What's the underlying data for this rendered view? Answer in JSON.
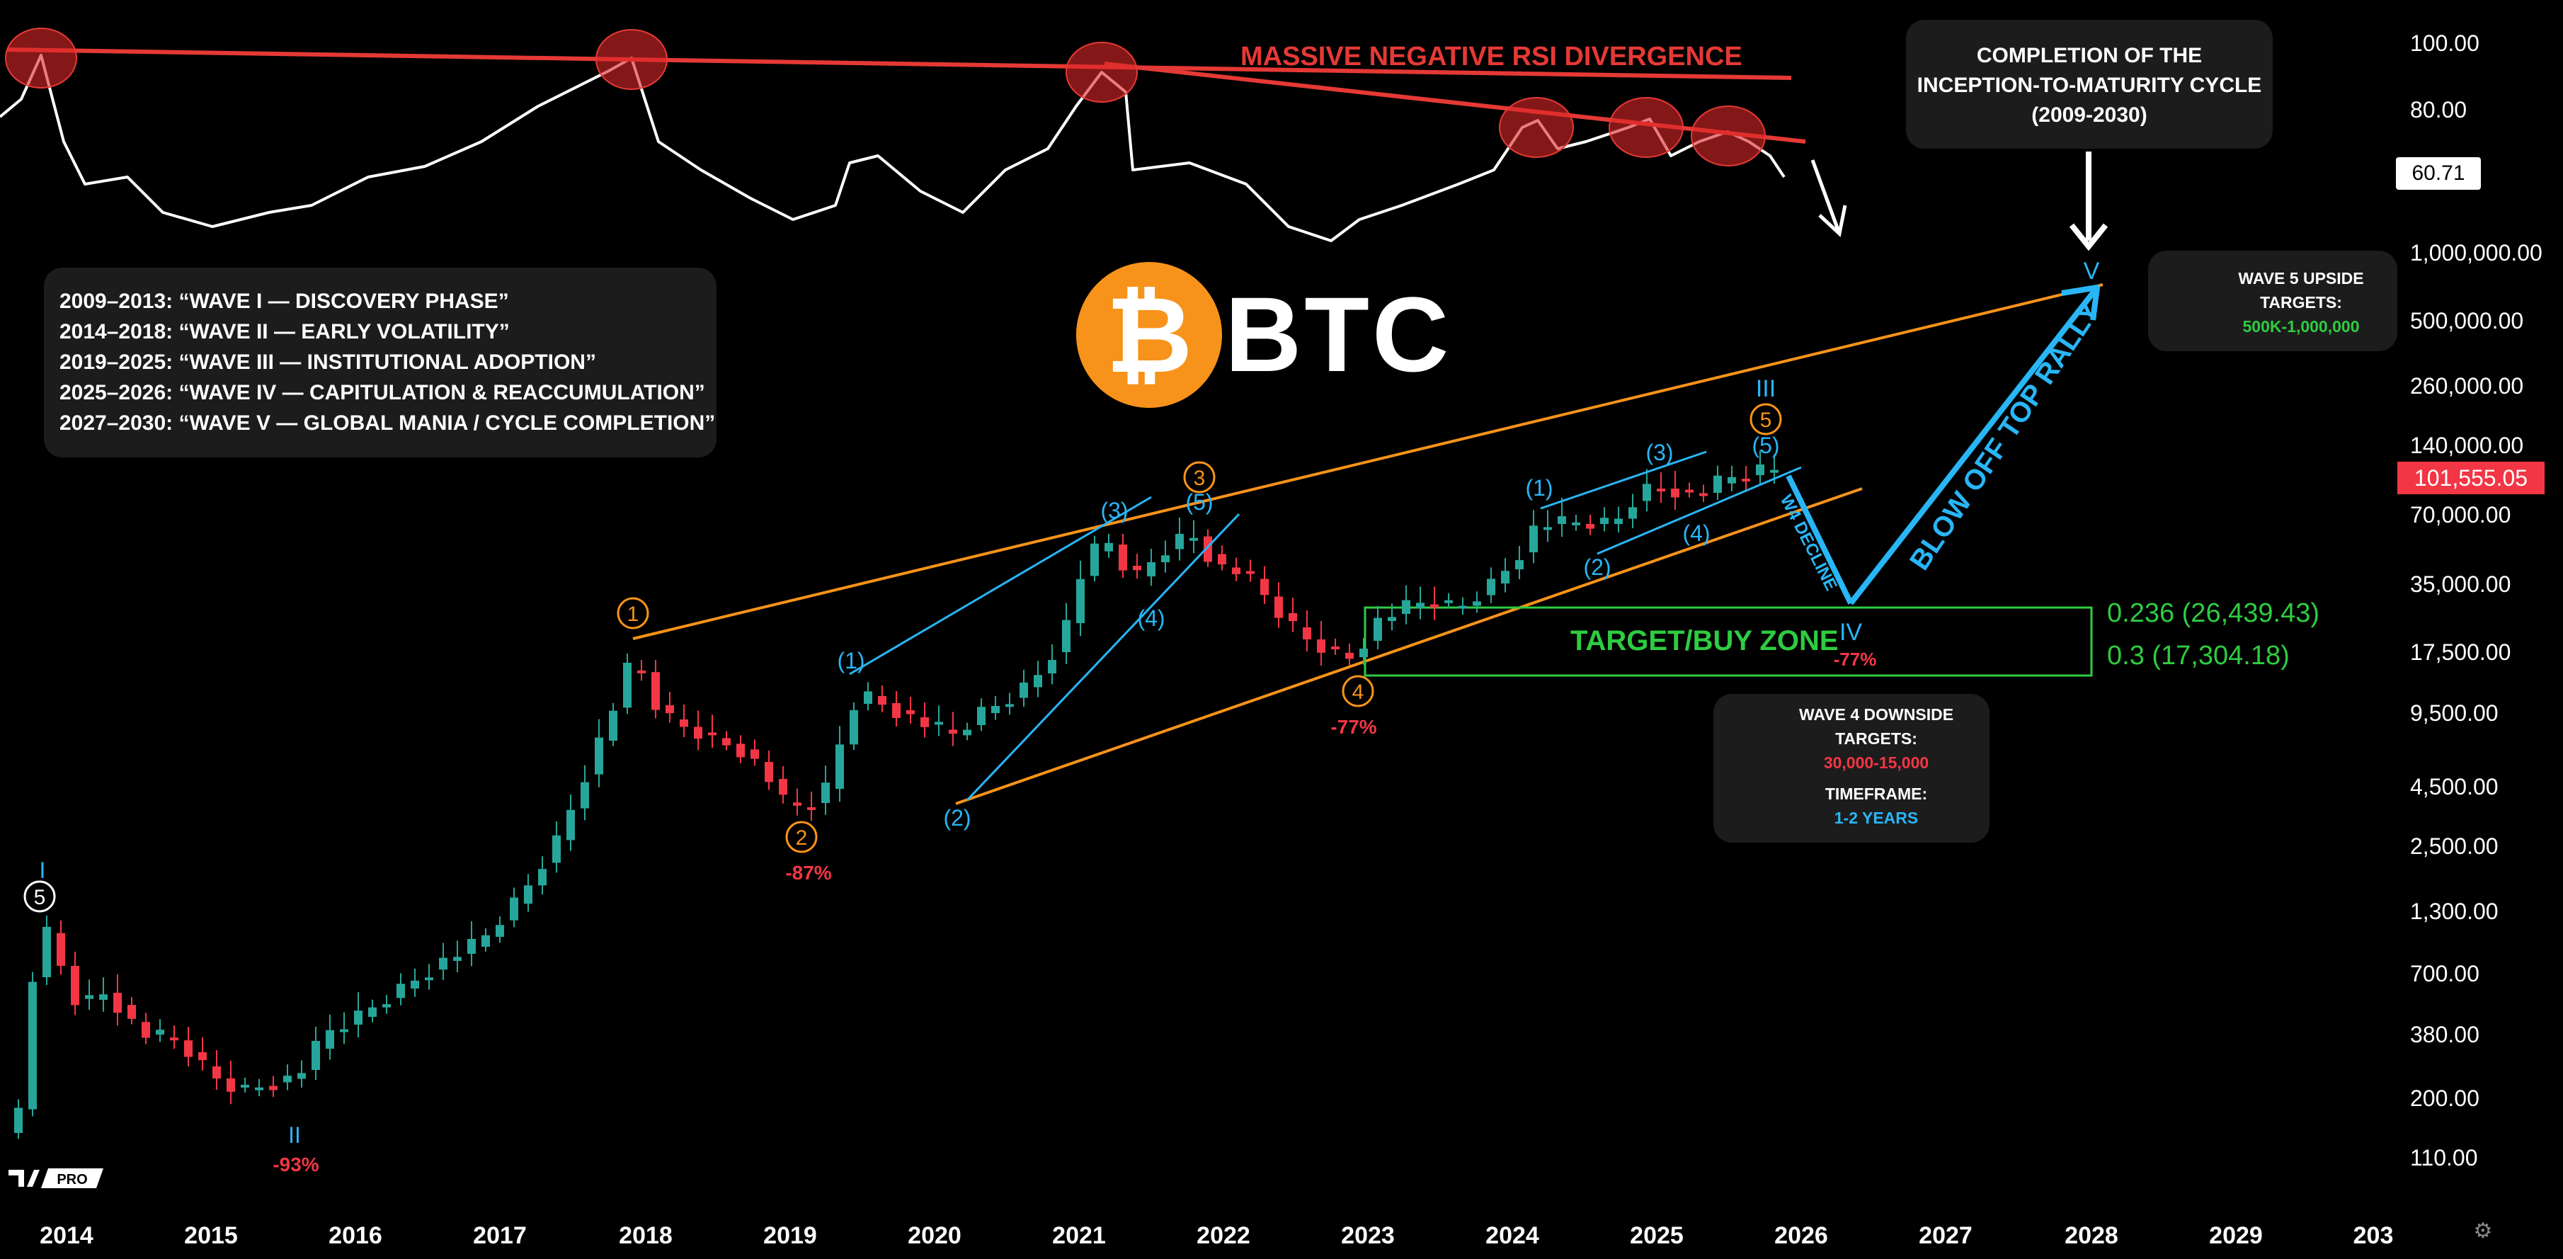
{
  "chart_data": {
    "type": "candlestick",
    "symbol": "BTC",
    "x_axis_labels": [
      "2014",
      "2015",
      "2016",
      "2017",
      "2018",
      "2019",
      "2020",
      "2021",
      "2022",
      "2023",
      "2024",
      "2025",
      "2026",
      "2027",
      "2028",
      "2029",
      "203"
    ],
    "y_axis_labels": [
      "1,000,000.00",
      "500,000.00",
      "260,000.00",
      "140,000.00",
      "70,000.00",
      "35,000.00",
      "17,500.00",
      "9,500.00",
      "4,500.00",
      "2,500.00",
      "1,300.00",
      "700.00",
      "380.00",
      "200.00",
      "110.00"
    ],
    "y_scale": "log",
    "rsi_axis_labels": [
      "100.00",
      "80.00"
    ],
    "rsi_current": "60.71",
    "current_price": "101,555.05",
    "rsi_title": "MASSIVE NEGATIVE RSI DIVERGENCE",
    "legend": [
      "2009–2013: “WAVE I — DISCOVERY PHASE”",
      "2014–2018: “WAVE II — EARLY VOLATILITY”",
      "2019–2025: “WAVE III — INSTITUTIONAL ADOPTION”",
      "2025–2026: “WAVE IV — CAPITULATION & REACCUMULATION”",
      "2027–2030: “WAVE V — GLOBAL MANIA / CYCLE COMPLETION”"
    ],
    "cycle_box": [
      "COMPLETION OF THE",
      "INCEPTION-TO-MATURITY CYCLE",
      "(2009-2030)"
    ],
    "wave5_box": {
      "title_1": "WAVE 5 UPSIDE",
      "title_2": "TARGETS:",
      "value": "500K-1,000,000"
    },
    "wave4_box": {
      "title_1": "WAVE 4 DOWNSIDE",
      "title_2": "TARGETS:",
      "value": "30,000-15,000",
      "tf_title": "TIMEFRAME:",
      "tf_value": "1-2 YEARS"
    },
    "buy_zone": {
      "label": "TARGET/BUY ZONE",
      "fib_1": "0.236 (26,439.43)",
      "fib_2": "0.3 (17,304.18)"
    },
    "annotations": {
      "blow_off": "BLOW OFF TOP RALLY",
      "w4_decline": "W4 DECLINE",
      "drawdown_2015": "-93%",
      "drawdown_2018": "-87%",
      "drawdown_2022": "-77%",
      "drawdown_iv": "-77%",
      "roman_I": "I",
      "roman_II": "II",
      "roman_III": "III",
      "roman_IV": "IV",
      "roman_V": "V",
      "c1": "1",
      "c2": "2",
      "c3": "3",
      "c4": "4",
      "c5": "5",
      "c5_2013": "5",
      "p1a": "(1)",
      "p2a": "(2)",
      "p3a": "(3)",
      "p4a": "(4)",
      "p5a": "(5)",
      "p1b": "(1)",
      "p2b": "(2)",
      "p3b": "(3)",
      "p4b": "(4)",
      "p5b": "(5)"
    },
    "brand": {
      "logo_text": "BTC",
      "symbol": "₿",
      "tv_badge": "PRO"
    },
    "colors": {
      "up": "#26a69a",
      "down": "#f23645",
      "channel": "#f7931a",
      "wave": "#29b6f6",
      "rsi_line": "#e53935",
      "zone": "#2ecc40",
      "bg": "#000000"
    }
  }
}
